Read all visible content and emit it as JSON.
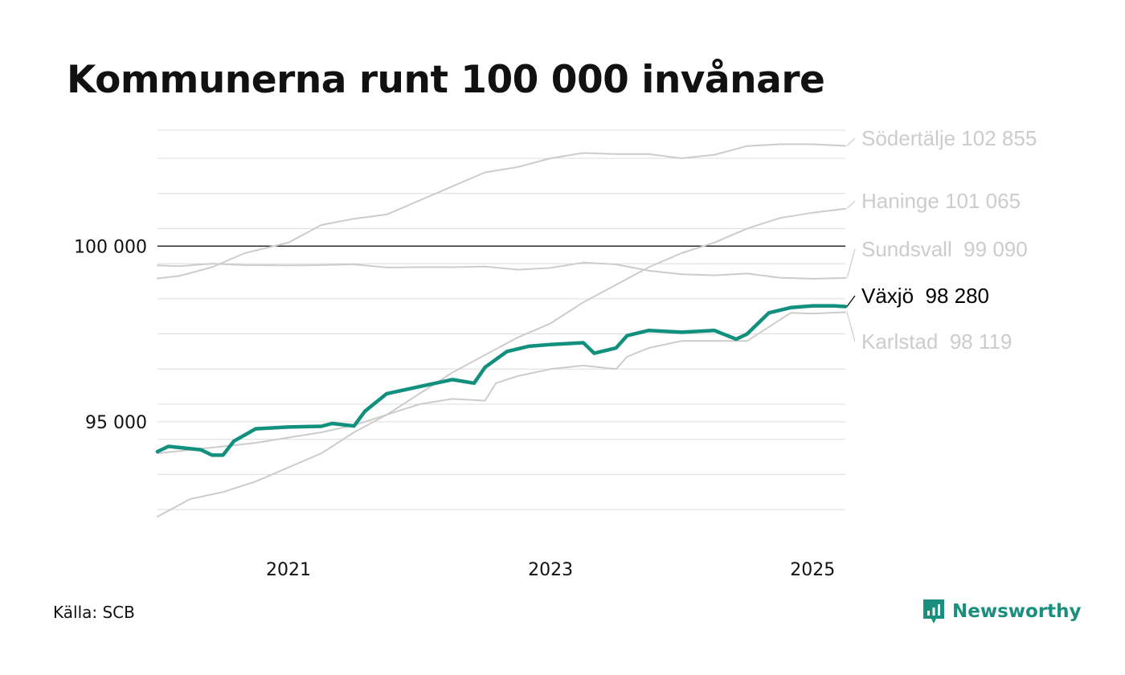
{
  "title": "Kommunerna runt 100 000 invånare",
  "source": "Källa: SCB",
  "brand": "Newsworthy",
  "colors": {
    "highlight": "#12907e",
    "muted": "#cccccc",
    "grid": "#dcdcdc",
    "reference": "#000000"
  },
  "chart_data": {
    "type": "line",
    "x_range": [
      "2020-01",
      "2025-04"
    ],
    "ylim": [
      92000,
      103300
    ],
    "y_gridlines": [
      92500,
      93500,
      94500,
      95000,
      95500,
      96500,
      97500,
      98500,
      99500,
      100000,
      100500,
      101500,
      102500,
      103300
    ],
    "reference_line": 100000,
    "yticks": [
      {
        "value": 95000,
        "label": "95 000"
      },
      {
        "value": 100000,
        "label": "100 000"
      }
    ],
    "xticks": [
      {
        "value": "2021-01",
        "label": "2021"
      },
      {
        "value": "2023-01",
        "label": "2023"
      },
      {
        "value": "2025-01",
        "label": "2025"
      }
    ],
    "series": [
      {
        "name": "Södertälje",
        "label": "Södertälje 102 855",
        "highlight": false,
        "points": [
          [
            "2020-01",
            99080
          ],
          [
            "2020-03",
            99150
          ],
          [
            "2020-06",
            99400
          ],
          [
            "2020-09",
            99800
          ],
          [
            "2021-01",
            100100
          ],
          [
            "2021-04",
            100600
          ],
          [
            "2021-07",
            100780
          ],
          [
            "2021-10",
            100900
          ],
          [
            "2022-01",
            101300
          ],
          [
            "2022-04",
            101700
          ],
          [
            "2022-07",
            102100
          ],
          [
            "2022-10",
            102250
          ],
          [
            "2023-01",
            102500
          ],
          [
            "2023-04",
            102650
          ],
          [
            "2023-07",
            102620
          ],
          [
            "2023-10",
            102620
          ],
          [
            "2024-01",
            102500
          ],
          [
            "2024-04",
            102600
          ],
          [
            "2024-07",
            102850
          ],
          [
            "2024-10",
            102900
          ],
          [
            "2025-01",
            102900
          ],
          [
            "2025-04",
            102855
          ]
        ]
      },
      {
        "name": "Haninge",
        "label": "Haninge 101 065",
        "highlight": false,
        "points": [
          [
            "2020-01",
            92300
          ],
          [
            "2020-04",
            92800
          ],
          [
            "2020-07",
            93000
          ],
          [
            "2020-10",
            93300
          ],
          [
            "2021-01",
            93700
          ],
          [
            "2021-04",
            94100
          ],
          [
            "2021-07",
            94700
          ],
          [
            "2021-10",
            95200
          ],
          [
            "2022-01",
            95800
          ],
          [
            "2022-04",
            96400
          ],
          [
            "2022-07",
            96900
          ],
          [
            "2022-10",
            97400
          ],
          [
            "2023-01",
            97800
          ],
          [
            "2023-04",
            98400
          ],
          [
            "2023-07",
            98900
          ],
          [
            "2023-10",
            99400
          ],
          [
            "2024-01",
            99800
          ],
          [
            "2024-04",
            100100
          ],
          [
            "2024-07",
            100500
          ],
          [
            "2024-10",
            100800
          ],
          [
            "2025-01",
            100950
          ],
          [
            "2025-04",
            101065
          ]
        ]
      },
      {
        "name": "Sundsvall",
        "label": "Sundsvall  99 090",
        "highlight": false,
        "points": [
          [
            "2020-01",
            99450
          ],
          [
            "2020-03",
            99430
          ],
          [
            "2020-06",
            99500
          ],
          [
            "2020-09",
            99460
          ],
          [
            "2021-01",
            99450
          ],
          [
            "2021-04",
            99460
          ],
          [
            "2021-07",
            99480
          ],
          [
            "2021-10",
            99390
          ],
          [
            "2022-01",
            99400
          ],
          [
            "2022-04",
            99400
          ],
          [
            "2022-07",
            99420
          ],
          [
            "2022-10",
            99330
          ],
          [
            "2023-01",
            99380
          ],
          [
            "2023-04",
            99530
          ],
          [
            "2023-07",
            99480
          ],
          [
            "2023-10",
            99300
          ],
          [
            "2024-01",
            99200
          ],
          [
            "2024-04",
            99170
          ],
          [
            "2024-07",
            99220
          ],
          [
            "2024-10",
            99100
          ],
          [
            "2025-01",
            99070
          ],
          [
            "2025-04",
            99090
          ]
        ]
      },
      {
        "name": "Karlstad",
        "label": "Karlstad  98 119",
        "highlight": false,
        "points": [
          [
            "2020-01",
            94100
          ],
          [
            "2020-04",
            94200
          ],
          [
            "2020-07",
            94300
          ],
          [
            "2020-10",
            94400
          ],
          [
            "2021-01",
            94550
          ],
          [
            "2021-04",
            94700
          ],
          [
            "2021-07",
            94900
          ],
          [
            "2021-10",
            95200
          ],
          [
            "2022-01",
            95500
          ],
          [
            "2022-04",
            95650
          ],
          [
            "2022-07",
            95600
          ],
          [
            "2022-08",
            96100
          ],
          [
            "2022-10",
            96300
          ],
          [
            "2023-01",
            96500
          ],
          [
            "2023-04",
            96600
          ],
          [
            "2023-07",
            96500
          ],
          [
            "2023-08",
            96850
          ],
          [
            "2023-10",
            97100
          ],
          [
            "2024-01",
            97300
          ],
          [
            "2024-04",
            97300
          ],
          [
            "2024-07",
            97300
          ],
          [
            "2024-09",
            97700
          ],
          [
            "2024-11",
            98100
          ],
          [
            "2025-01",
            98080
          ],
          [
            "2025-04",
            98119
          ]
        ]
      },
      {
        "name": "Växjö",
        "label": "Växjö  98 280",
        "highlight": true,
        "points": [
          [
            "2020-01",
            94150
          ],
          [
            "2020-02",
            94300
          ],
          [
            "2020-05",
            94200
          ],
          [
            "2020-06",
            94050
          ],
          [
            "2020-07",
            94050
          ],
          [
            "2020-08",
            94450
          ],
          [
            "2020-10",
            94800
          ],
          [
            "2021-01",
            94850
          ],
          [
            "2021-04",
            94870
          ],
          [
            "2021-05",
            94950
          ],
          [
            "2021-07",
            94880
          ],
          [
            "2021-08",
            95300
          ],
          [
            "2021-10",
            95800
          ],
          [
            "2022-01",
            96000
          ],
          [
            "2022-04",
            96200
          ],
          [
            "2022-06",
            96100
          ],
          [
            "2022-07",
            96550
          ],
          [
            "2022-09",
            97000
          ],
          [
            "2022-11",
            97150
          ],
          [
            "2023-01",
            97200
          ],
          [
            "2023-04",
            97250
          ],
          [
            "2023-05",
            96950
          ],
          [
            "2023-07",
            97100
          ],
          [
            "2023-08",
            97450
          ],
          [
            "2023-10",
            97600
          ],
          [
            "2024-01",
            97550
          ],
          [
            "2024-04",
            97600
          ],
          [
            "2024-06",
            97350
          ],
          [
            "2024-07",
            97500
          ],
          [
            "2024-09",
            98100
          ],
          [
            "2024-11",
            98250
          ],
          [
            "2025-01",
            98300
          ],
          [
            "2025-03",
            98300
          ],
          [
            "2025-04",
            98280
          ]
        ]
      }
    ]
  }
}
